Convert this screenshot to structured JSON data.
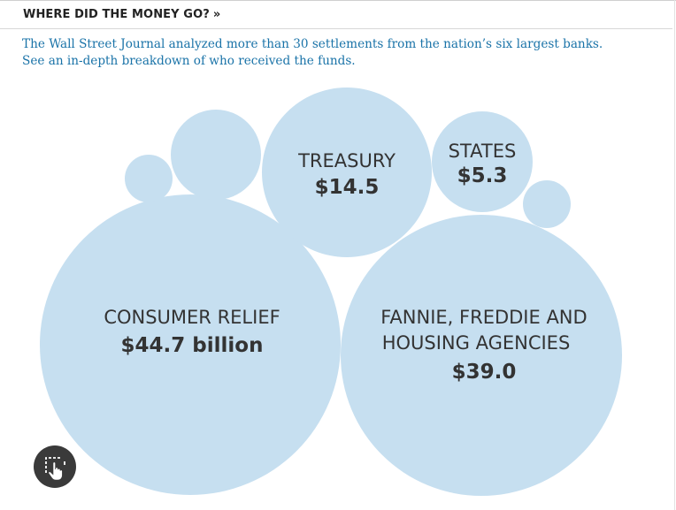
{
  "header": {
    "title": "WHERE DID THE MONEY GO?",
    "arrows": "»"
  },
  "intro": {
    "line1": "The Wall Street Journal analyzed more than 30 settlements from the nation’s six largest banks.",
    "line2": "See an in-depth breakdown of who received the funds."
  },
  "chart_data": {
    "type": "bubble",
    "unit": "billion",
    "bubbles": [
      {
        "labels": [
          "CONSUMER RELIEF"
        ],
        "value": 44.7,
        "value_label": "$44.7 billion"
      },
      {
        "labels": [
          "FANNIE, FREDDIE AND",
          "HOUSING AGENCIES"
        ],
        "value": 39.0,
        "value_label": "$39.0"
      },
      {
        "labels": [
          "TREASURY"
        ],
        "value": 14.5,
        "value_label": "$14.5"
      },
      {
        "labels": [
          "STATES"
        ],
        "value": 5.3,
        "value_label": "$5.3"
      },
      {
        "labels": [],
        "value": null,
        "value_label": ""
      },
      {
        "labels": [],
        "value": null,
        "value_label": ""
      },
      {
        "labels": [],
        "value": null,
        "value_label": ""
      }
    ],
    "colors": {
      "bubble": "#c6dff0"
    }
  },
  "colors": {
    "link": "#1a73a8",
    "bubble": "#c6dff0",
    "button": "#3a3a3a"
  },
  "icons": {
    "expand": "cursor-hand-icon"
  }
}
